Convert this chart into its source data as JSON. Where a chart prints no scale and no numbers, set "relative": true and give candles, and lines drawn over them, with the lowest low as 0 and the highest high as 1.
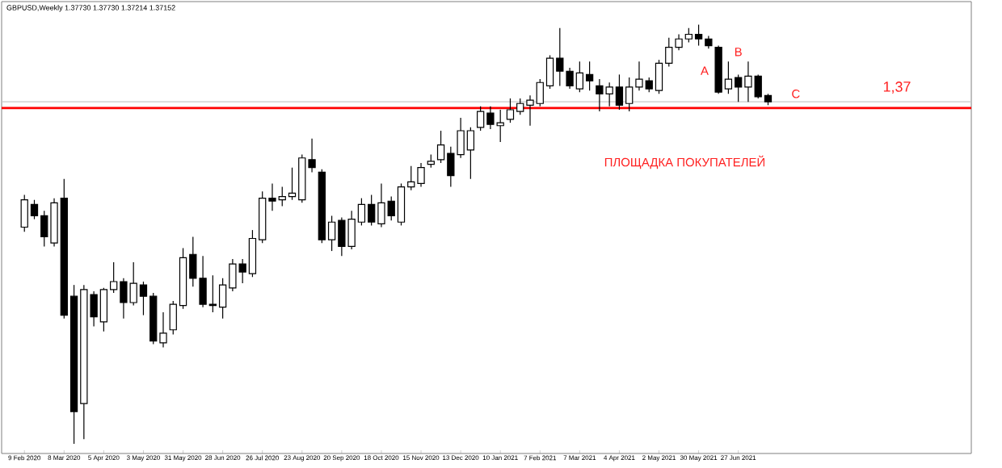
{
  "chart_data": {
    "type": "candlestick",
    "relative": true,
    "title": "GBPUSD,Weekly  1.37730 1.37730 1.37214 1.37152",
    "categories": [
      "9 Feb 2020",
      null,
      null,
      null,
      "8 Mar 2020",
      null,
      null,
      null,
      "5 Apr 2020",
      null,
      null,
      null,
      "3 May 2020",
      null,
      null,
      null,
      "31 May 2020",
      null,
      null,
      null,
      "28 Jun 2020",
      null,
      null,
      null,
      "26 Jul 2020",
      null,
      null,
      null,
      "23 Aug 2020",
      null,
      null,
      null,
      "20 Sep 2020",
      null,
      null,
      null,
      "18 Oct 2020",
      null,
      null,
      null,
      "15 Nov 2020",
      null,
      null,
      null,
      "13 Dec 2020",
      null,
      null,
      null,
      "10 Jan 2021",
      null,
      null,
      null,
      "7 Feb 2021",
      null,
      null,
      null,
      "7 Mar 2021",
      null,
      null,
      null,
      "4 Apr 2021",
      null,
      null,
      null,
      "2 May 2021",
      null,
      null,
      null,
      "30 May 2021",
      null,
      null,
      null,
      "27 Jun 2021",
      null,
      null,
      null
    ],
    "ohlc": [
      [
        0.517,
        0.594,
        0.506,
        0.582
      ],
      [
        0.571,
        0.582,
        0.536,
        0.544
      ],
      [
        0.544,
        0.556,
        0.471,
        0.494
      ],
      [
        0.479,
        0.586,
        0.471,
        0.575
      ],
      [
        0.586,
        0.632,
        0.299,
        0.307
      ],
      [
        0.352,
        0.379,
        0.0,
        0.077
      ],
      [
        0.096,
        0.379,
        0.011,
        0.368
      ],
      [
        0.356,
        0.364,
        0.28,
        0.303
      ],
      [
        0.291,
        0.372,
        0.268,
        0.368
      ],
      [
        0.368,
        0.433,
        0.36,
        0.387
      ],
      [
        0.387,
        0.395,
        0.299,
        0.337
      ],
      [
        0.337,
        0.433,
        0.33,
        0.383
      ],
      [
        0.379,
        0.387,
        0.307,
        0.352
      ],
      [
        0.352,
        0.36,
        0.238,
        0.245
      ],
      [
        0.241,
        0.314,
        0.23,
        0.264
      ],
      [
        0.272,
        0.341,
        0.261,
        0.333
      ],
      [
        0.33,
        0.467,
        0.322,
        0.444
      ],
      [
        0.452,
        0.494,
        0.375,
        0.395
      ],
      [
        0.395,
        0.448,
        0.326,
        0.333
      ],
      [
        0.333,
        0.402,
        0.314,
        0.33
      ],
      [
        0.326,
        0.395,
        0.299,
        0.379
      ],
      [
        0.372,
        0.441,
        0.364,
        0.429
      ],
      [
        0.429,
        0.441,
        0.383,
        0.41
      ],
      [
        0.406,
        0.51,
        0.398,
        0.49
      ],
      [
        0.487,
        0.602,
        0.479,
        0.586
      ],
      [
        0.586,
        0.621,
        0.556,
        0.579
      ],
      [
        0.582,
        0.613,
        0.567,
        0.59
      ],
      [
        0.59,
        0.659,
        0.582,
        0.598
      ],
      [
        0.582,
        0.69,
        0.575,
        0.682
      ],
      [
        0.678,
        0.728,
        0.648,
        0.659
      ],
      [
        0.648,
        0.655,
        0.479,
        0.487
      ],
      [
        0.487,
        0.544,
        0.46,
        0.529
      ],
      [
        0.533,
        0.54,
        0.448,
        0.471
      ],
      [
        0.471,
        0.556,
        0.464,
        0.536
      ],
      [
        0.529,
        0.586,
        0.521,
        0.571
      ],
      [
        0.571,
        0.594,
        0.521,
        0.529
      ],
      [
        0.525,
        0.621,
        0.517,
        0.575
      ],
      [
        0.579,
        0.59,
        0.533,
        0.544
      ],
      [
        0.529,
        0.621,
        0.521,
        0.613
      ],
      [
        0.613,
        0.663,
        0.605,
        0.625
      ],
      [
        0.621,
        0.67,
        0.613,
        0.659
      ],
      [
        0.667,
        0.69,
        0.659,
        0.674
      ],
      [
        0.678,
        0.747,
        0.67,
        0.713
      ],
      [
        0.693,
        0.709,
        0.613,
        0.64
      ],
      [
        0.69,
        0.778,
        0.682,
        0.747
      ],
      [
        0.701,
        0.755,
        0.632,
        0.747
      ],
      [
        0.755,
        0.805,
        0.747,
        0.793
      ],
      [
        0.789,
        0.805,
        0.751,
        0.762
      ],
      [
        0.759,
        0.797,
        0.72,
        0.766
      ],
      [
        0.774,
        0.824,
        0.766,
        0.797
      ],
      [
        0.793,
        0.824,
        0.785,
        0.812
      ],
      [
        0.808,
        0.831,
        0.759,
        0.82
      ],
      [
        0.812,
        0.87,
        0.805,
        0.862
      ],
      [
        0.854,
        0.927,
        0.847,
        0.92
      ],
      [
        0.92,
        0.992,
        0.854,
        0.889
      ],
      [
        0.889,
        0.897,
        0.847,
        0.854
      ],
      [
        0.847,
        0.912,
        0.839,
        0.885
      ],
      [
        0.881,
        0.912,
        0.843,
        0.866
      ],
      [
        0.854,
        0.87,
        0.793,
        0.835
      ],
      [
        0.835,
        0.862,
        0.805,
        0.851
      ],
      [
        0.851,
        0.881,
        0.797,
        0.808
      ],
      [
        0.812,
        0.874,
        0.793,
        0.851
      ],
      [
        0.851,
        0.912,
        0.843,
        0.87
      ],
      [
        0.866,
        0.874,
        0.839,
        0.847
      ],
      [
        0.843,
        0.916,
        0.835,
        0.908
      ],
      [
        0.908,
        0.969,
        0.9,
        0.946
      ],
      [
        0.946,
        0.977,
        0.939,
        0.966
      ],
      [
        0.966,
        0.992,
        0.958,
        0.977
      ],
      [
        0.977,
        1.0,
        0.95,
        0.966
      ],
      [
        0.966,
        0.973,
        0.943,
        0.95
      ],
      [
        0.946,
        0.95,
        0.835,
        0.839
      ],
      [
        0.847,
        0.912,
        0.835,
        0.87
      ],
      [
        0.874,
        0.881,
        0.816,
        0.851
      ],
      [
        0.851,
        0.912,
        0.816,
        0.877
      ],
      [
        0.877,
        0.881,
        0.824,
        0.828
      ],
      [
        0.831,
        0.835,
        0.808,
        0.816
      ]
    ],
    "ref_lines": [
      {
        "axis": "y",
        "value": 0.801,
        "color": "#ff0000",
        "line_style": "solid"
      },
      {
        "axis": "y",
        "value": 0.816,
        "color": "#c8c8c8"
      }
    ],
    "annotations": [
      "A",
      "B",
      "C",
      "ПЛОЩАДКА ПОКУПАТЕЛЕЙ",
      "1,37"
    ]
  }
}
